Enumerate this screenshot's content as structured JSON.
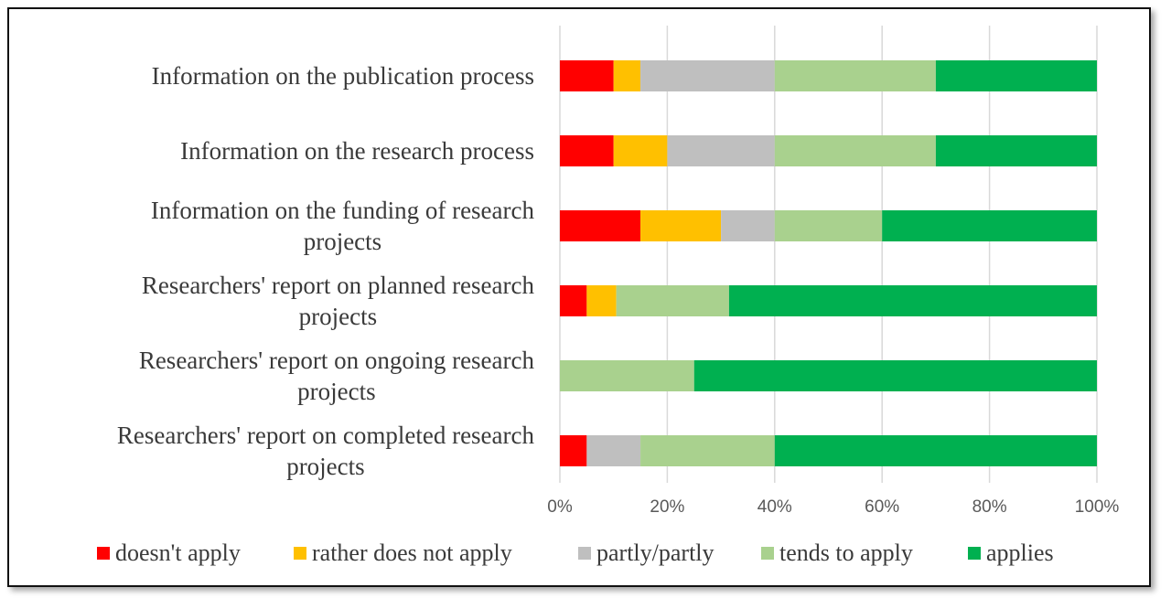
{
  "chart_data": {
    "type": "bar",
    "orientation": "horizontal",
    "stacked": "percent",
    "categories": [
      "Information on the publication process",
      "Information on the research process",
      "Information on the funding of research projects",
      "Researchers' report on planned research projects",
      "Researchers' report on ongoing research projects",
      "Researchers' report on completed research projects"
    ],
    "category_lines": [
      [
        "Information on the publication process"
      ],
      [
        "Information on the research process"
      ],
      [
        "Information on the funding of research",
        "projects"
      ],
      [
        "Researchers' report on planned research",
        "projects"
      ],
      [
        "Researchers' report on ongoing research",
        "projects"
      ],
      [
        "Researchers' report on completed research",
        "projects"
      ]
    ],
    "series": [
      {
        "name": "doesn't apply",
        "color": "#ff0000",
        "values": [
          10,
          10,
          15,
          5,
          0,
          5
        ]
      },
      {
        "name": "rather does not apply",
        "color": "#ffc000",
        "values": [
          5,
          10,
          15,
          5.5,
          0,
          0
        ]
      },
      {
        "name": "partly/partly",
        "color": "#bfbfbf",
        "values": [
          25,
          20,
          10,
          0,
          0,
          10
        ]
      },
      {
        "name": "tends to apply",
        "color": "#a9d18e",
        "values": [
          30,
          30,
          20,
          21,
          25,
          25
        ]
      },
      {
        "name": "applies",
        "color": "#00b050",
        "values": [
          30,
          30,
          40,
          68.5,
          75,
          60
        ]
      }
    ],
    "x_ticks": [
      "0%",
      "20%",
      "40%",
      "60%",
      "80%",
      "100%"
    ],
    "xlim": [
      0,
      100
    ],
    "grid": true,
    "legend_position": "bottom",
    "title": "",
    "xlabel": "",
    "ylabel": ""
  }
}
